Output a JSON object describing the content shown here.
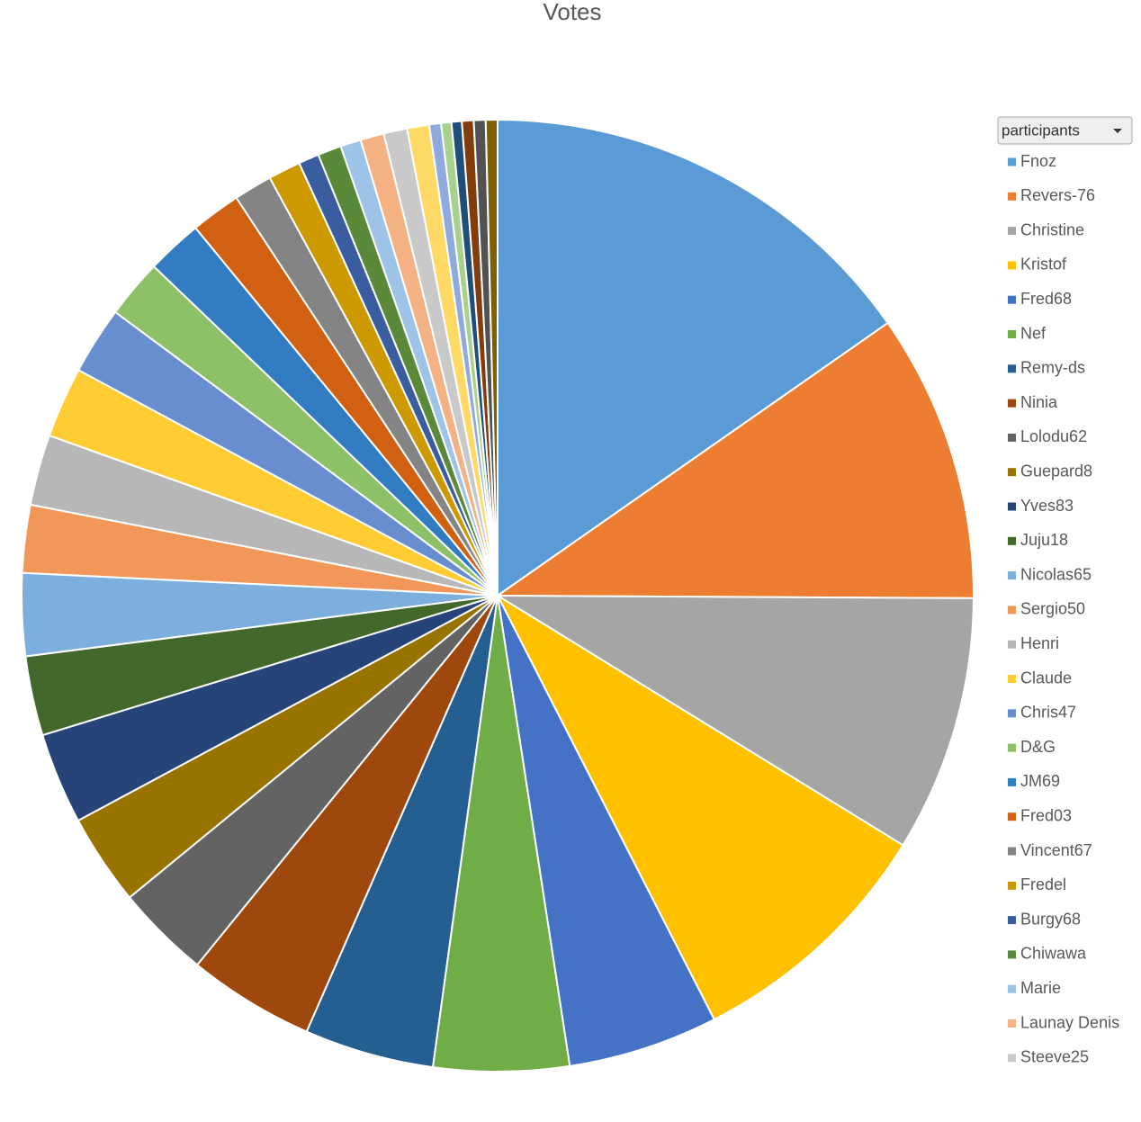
{
  "chart_data": {
    "type": "pie",
    "title": "Votes",
    "legend_title": "participants",
    "categories": [
      "Fnoz",
      "Revers-76",
      "Christine",
      "Kristof",
      "Fred68",
      "Nef",
      "Remy-ds",
      "Ninia",
      "Lolodu62",
      "Guepard8",
      "Yves83",
      "Juju18",
      "Nicolas65",
      "Sergio50",
      "Henri",
      "Claude",
      "Chris47",
      "D&G",
      "JM69",
      "Fred03",
      "Vincent67",
      "Fredel",
      "Burgy68",
      "Chiwawa",
      "Marie",
      "Launay Denis",
      "Steeve25",
      null,
      null,
      null,
      null,
      null,
      null,
      null
    ],
    "values": [
      15.3,
      9.8,
      8.7,
      8.7,
      5.1,
      4.6,
      4.4,
      4.3,
      3.2,
      3.1,
      3.1,
      2.7,
      2.8,
      2.3,
      2.4,
      2.4,
      2.3,
      2.0,
      1.9,
      1.7,
      1.3,
      1.1,
      0.7,
      0.8,
      0.7,
      0.8,
      0.8,
      0.75,
      0.4,
      0.35,
      0.35,
      0.4,
      0.4,
      0.4
    ],
    "colors": [
      "#5b9bd5",
      "#ed7d31",
      "#a5a5a5",
      "#ffc000",
      "#4472c4",
      "#70ad47",
      "#255e91",
      "#9e480e",
      "#636363",
      "#997300",
      "#264478",
      "#43682b",
      "#7cafdd",
      "#f1975a",
      "#b7b7b7",
      "#ffcd33",
      "#698ed0",
      "#8cc168",
      "#327dc2",
      "#d26012",
      "#848484",
      "#cc9a00",
      "#3a5da0",
      "#5a8a39",
      "#9dc3e6",
      "#f4b183",
      "#c9c9c9",
      "#ffd966",
      "#8faadc",
      "#a9d18e",
      "#1f4e79",
      "#843c0c",
      "#525252",
      "#7f6000"
    ],
    "legend": "right"
  }
}
